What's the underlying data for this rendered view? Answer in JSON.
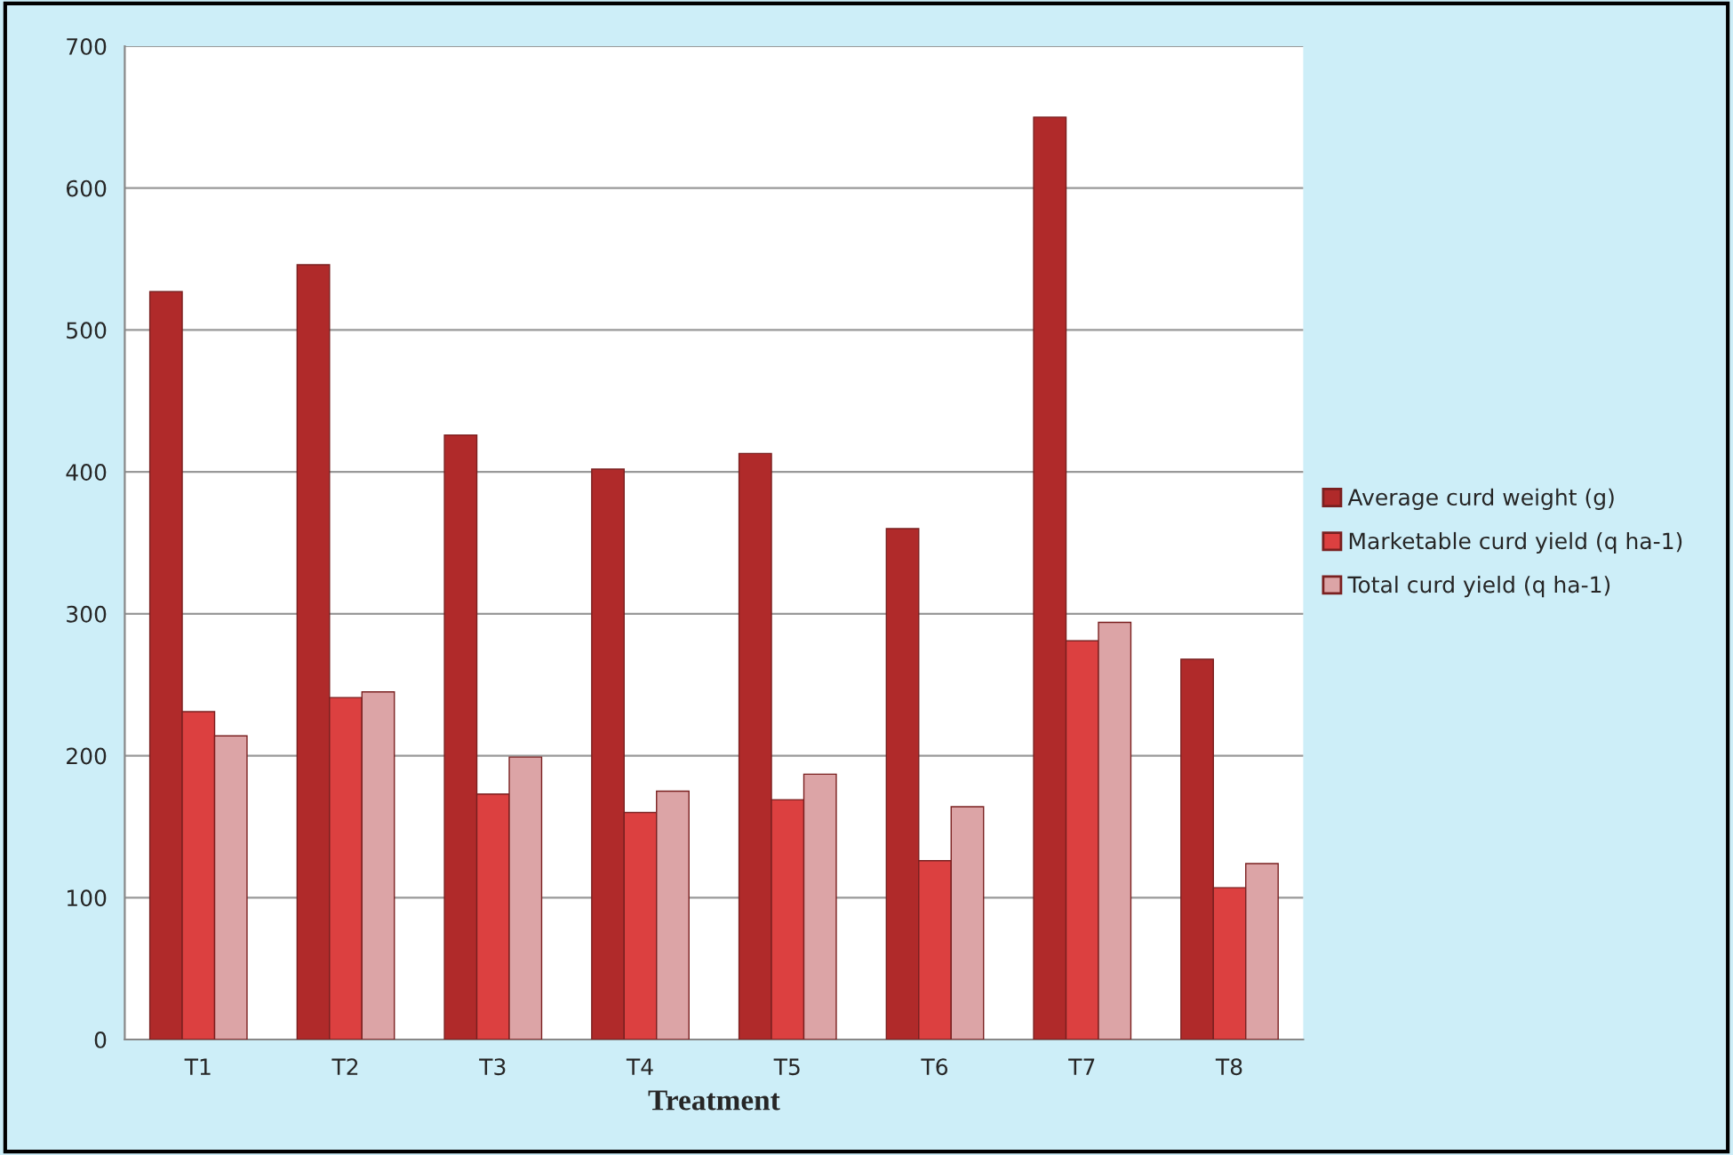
{
  "chart_data": {
    "type": "bar",
    "xlabel": "Treatment",
    "categories": [
      "T1",
      "T2",
      "T3",
      "T4",
      "T5",
      "T6",
      "T7",
      "T8"
    ],
    "series": [
      {
        "name": "Average curd weight (g)",
        "color": "#b02a2a",
        "values": [
          527,
          546,
          426,
          402,
          413,
          360,
          650,
          268
        ]
      },
      {
        "name": "Marketable curd yield (q ha-1)",
        "color": "#dc4040",
        "values": [
          231,
          241,
          173,
          160,
          169,
          126,
          281,
          107
        ]
      },
      {
        "name": "Total curd yield (q ha-1)",
        "color": "#dca4a6",
        "values": [
          214,
          245,
          199,
          175,
          187,
          164,
          294,
          124
        ]
      }
    ],
    "ylim": [
      0,
      700
    ],
    "yticks": [
      0,
      100,
      200,
      300,
      400,
      500,
      600,
      700
    ],
    "grid": "y",
    "legend": "right"
  }
}
